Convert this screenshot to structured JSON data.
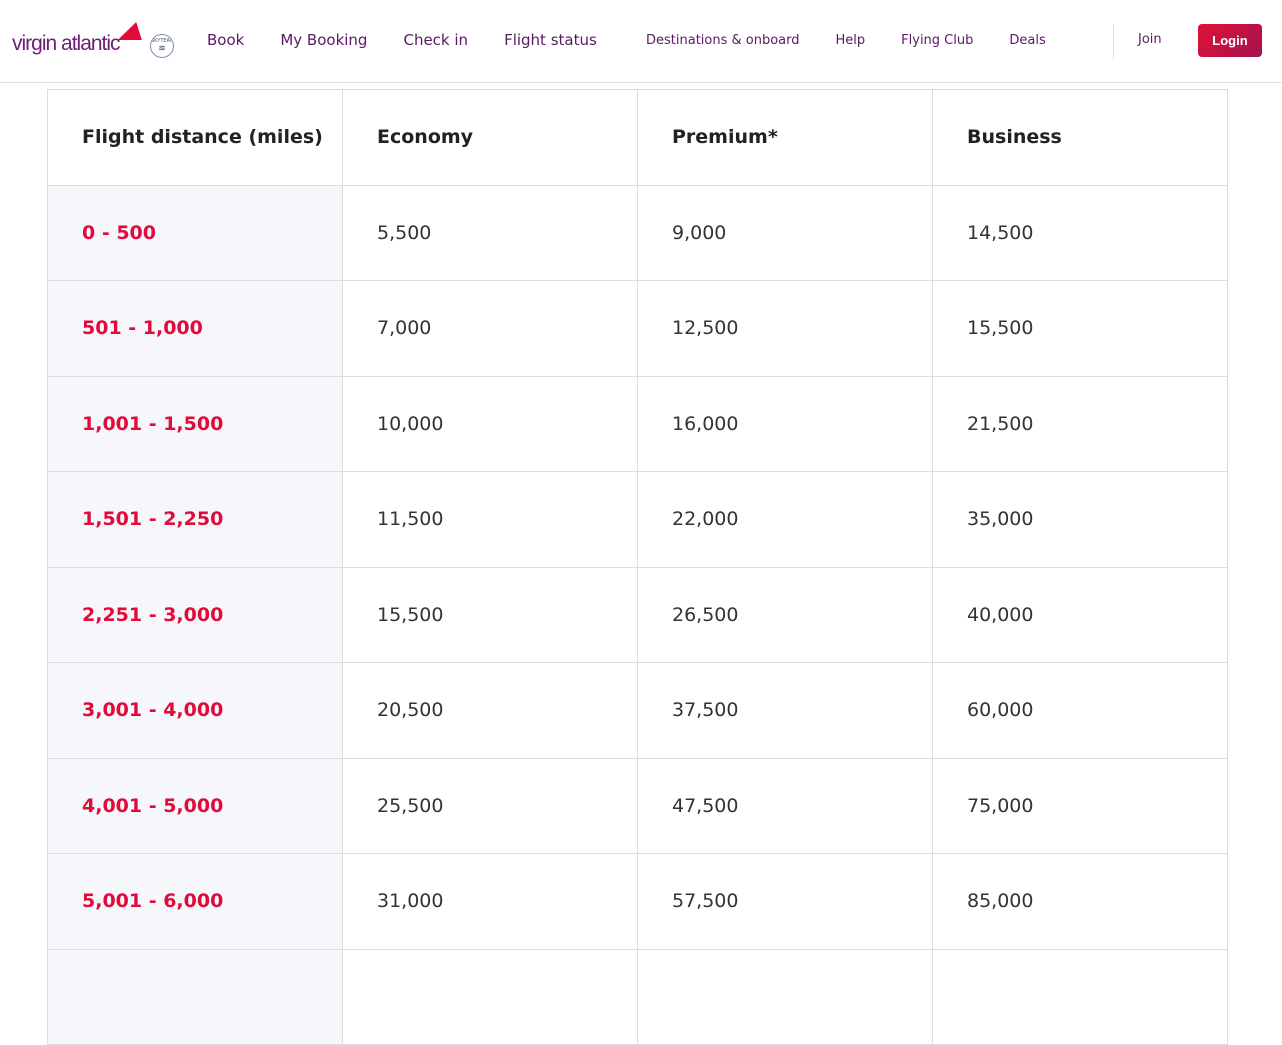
{
  "brand": {
    "name": "virgin atlantic",
    "flag_text": "Virgin",
    "alliance": "SkyTeam"
  },
  "nav": {
    "main": [
      "Book",
      "My Booking",
      "Check in",
      "Flight status"
    ],
    "secondary": [
      "Destinations & onboard",
      "Help",
      "Flying Club",
      "Deals"
    ],
    "join": "Join",
    "login": "Login"
  },
  "colors": {
    "accent": "#e10a3a",
    "nav_text": "#5a1a63"
  },
  "table": {
    "headers": [
      "Flight distance (miles)",
      "Economy",
      "Premium*",
      "Business"
    ],
    "rows": [
      [
        "0 - 500",
        "5,500",
        "9,000",
        "14,500"
      ],
      [
        "501 - 1,000",
        "7,000",
        "12,500",
        "15,500"
      ],
      [
        "1,001 - 1,500",
        "10,000",
        "16,000",
        "21,500"
      ],
      [
        "1,501 - 2,250",
        "11,500",
        "22,000",
        "35,000"
      ],
      [
        "2,251 - 3,000",
        "15,500",
        "26,500",
        "40,000"
      ],
      [
        "3,001 - 4,000",
        "20,500",
        "37,500",
        "60,000"
      ],
      [
        "4,001 - 5,000",
        "25,500",
        "47,500",
        "75,000"
      ],
      [
        "5,001 - 6,000",
        "31,000",
        "57,500",
        "85,000"
      ]
    ]
  }
}
